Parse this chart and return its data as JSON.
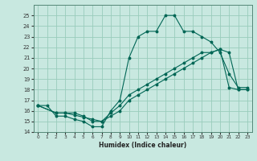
{
  "xlabel": "Humidex (Indice chaleur)",
  "xlim": [
    -0.5,
    23.5
  ],
  "ylim": [
    14,
    26
  ],
  "yticks": [
    14,
    15,
    16,
    17,
    18,
    19,
    20,
    21,
    22,
    23,
    24,
    25
  ],
  "xticks": [
    0,
    1,
    2,
    3,
    4,
    5,
    6,
    7,
    8,
    9,
    10,
    11,
    12,
    13,
    14,
    15,
    16,
    17,
    18,
    19,
    20,
    21,
    22,
    23
  ],
  "bg_color": "#c8e8e0",
  "grid_color": "#99ccbb",
  "line_color": "#006655",
  "line1_x": [
    0,
    1,
    2,
    3,
    4,
    5,
    6,
    7,
    8,
    9,
    10,
    11,
    12,
    13,
    14,
    15,
    16,
    17,
    18,
    19,
    20,
    21,
    22,
    23
  ],
  "line1_y": [
    16.5,
    16.5,
    15.5,
    15.5,
    15.2,
    15.0,
    14.5,
    14.5,
    16.0,
    17.0,
    21.0,
    23.0,
    23.5,
    23.5,
    25.0,
    25.0,
    23.5,
    23.5,
    23.0,
    22.5,
    21.5,
    19.5,
    18.2,
    18.2
  ],
  "line2_x": [
    0,
    2,
    3,
    4,
    5,
    6,
    7,
    8,
    9,
    10,
    11,
    12,
    13,
    14,
    15,
    16,
    17,
    18,
    19,
    20,
    21,
    22,
    23
  ],
  "line2_y": [
    16.5,
    15.8,
    15.8,
    15.6,
    15.4,
    15.2,
    15.0,
    15.5,
    16.0,
    17.0,
    17.5,
    18.0,
    18.5,
    19.0,
    19.5,
    20.0,
    20.5,
    21.0,
    21.5,
    21.8,
    18.2,
    18.0,
    18.0
  ],
  "line3_x": [
    0,
    2,
    3,
    4,
    5,
    6,
    7,
    8,
    9,
    10,
    11,
    12,
    13,
    14,
    15,
    16,
    17,
    18,
    19,
    20,
    21,
    22,
    23
  ],
  "line3_y": [
    16.5,
    15.8,
    15.8,
    15.8,
    15.5,
    15.0,
    15.0,
    15.8,
    16.5,
    17.5,
    18.0,
    18.5,
    19.0,
    19.5,
    20.0,
    20.5,
    21.0,
    21.5,
    21.5,
    21.8,
    21.5,
    18.0,
    18.0
  ]
}
